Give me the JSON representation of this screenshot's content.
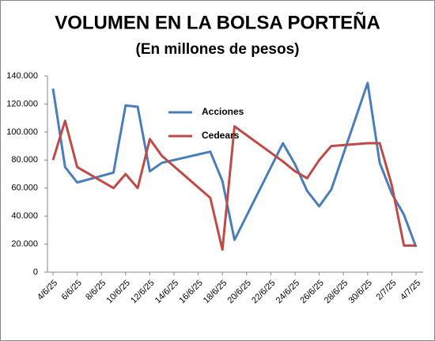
{
  "chart_data": {
    "type": "line",
    "title": "VOLUMEN EN LA BOLSA PORTEÑA",
    "subtitle": "(En millones de pesos)",
    "x": [
      "4/6/25",
      "5/6/25",
      "6/6/25",
      "9/6/25",
      "10/6/25",
      "11/6/25",
      "12/6/25",
      "13/6/25",
      "17/6/25",
      "18/6/25",
      "19/6/25",
      "23/6/25",
      "24/6/25",
      "25/6/25",
      "26/6/25",
      "27/6/25",
      "30/6/25",
      "1/7/25",
      "2/7/25",
      "3/7/25",
      "4/7/25"
    ],
    "series": [
      {
        "name": "Acciones",
        "color": "#4a7ebb",
        "values": [
          131000,
          75000,
          64000,
          71000,
          119000,
          118000,
          72000,
          78000,
          86000,
          65000,
          23000,
          92000,
          77000,
          58000,
          47000,
          59000,
          135000,
          78000,
          56000,
          41000,
          18000
        ]
      },
      {
        "name": "Cedears",
        "color": "#be4b48",
        "values": [
          80000,
          108000,
          75000,
          60000,
          70000,
          60000,
          95000,
          83000,
          53000,
          16000,
          104000,
          79000,
          72000,
          67000,
          80000,
          90000,
          92000,
          92000,
          62000,
          19000,
          19000
        ]
      }
    ],
    "xlim": [
      "4/6/25",
      "4/7/25"
    ],
    "xticks": [
      "4/6/25",
      "6/6/25",
      "8/6/25",
      "10/6/25",
      "12/6/25",
      "14/6/25",
      "16/6/25",
      "18/6/25",
      "20/6/25",
      "22/6/25",
      "24/6/25",
      "26/6/25",
      "28/6/25",
      "30/6/25",
      "2/7/25",
      "4/7/25"
    ],
    "ylim": [
      0,
      140000
    ],
    "yticks": [
      0,
      {
        "value": 20000,
        "label": "20.000"
      },
      {
        "value": 40000,
        "label": "40.000"
      },
      {
        "value": 60000,
        "label": "60.000"
      },
      {
        "value": 80000,
        "label": "80.000"
      },
      {
        "value": 100000,
        "label": "100.000"
      },
      {
        "value": 120000,
        "label": "120.000"
      },
      {
        "value": 140000,
        "label": "140.000"
      }
    ],
    "grid": false
  }
}
